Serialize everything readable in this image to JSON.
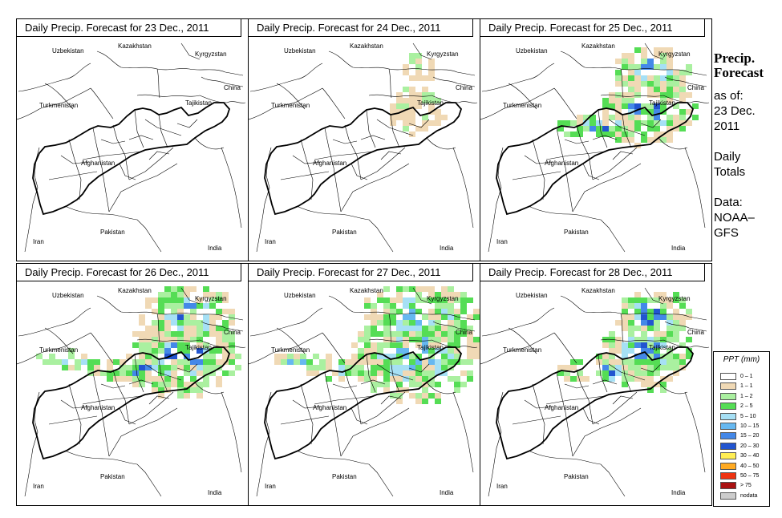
{
  "panels": [
    {
      "title": "Daily Precip. Forecast for  23 Dec., 2011",
      "intensity": 0
    },
    {
      "title": "Daily Precip. Forecast for  24 Dec., 2011",
      "intensity": 1
    },
    {
      "title": "Daily Precip. Forecast for  25 Dec., 2011",
      "intensity": 3
    },
    {
      "title": "Daily Precip. Forecast for  26 Dec., 2011",
      "intensity": 4
    },
    {
      "title": "Daily Precip. Forecast for  27 Dec., 2011",
      "intensity": 5
    },
    {
      "title": "Daily Precip. Forecast for  28 Dec., 2011",
      "intensity": 3
    }
  ],
  "map_labels": {
    "uzbekistan": "Uzbekistan",
    "kazakhstan": "Kazakhstan",
    "kyrgyzstan": "Kyrgyzstan",
    "china": "China",
    "turkmenistan": "Turkmenistan",
    "tajikistan": "Tajikistan",
    "afghanistan": "Afghanistan",
    "pakistan": "Pakistan",
    "iran": "Iran",
    "india": "India"
  },
  "side": {
    "title_line1": "Precip.",
    "title_line2": "Forecast",
    "as_of": "as of:",
    "date_line1": "23 Dec.",
    "date_line2": "2011",
    "totals_line1": "Daily",
    "totals_line2": "Totals",
    "data_line1": "Data:",
    "data_line2": "NOAA–",
    "data_line3": "GFS"
  },
  "legend": {
    "title": "PPT (mm)",
    "items": [
      {
        "label": "0 – 1",
        "color": "#ffffff"
      },
      {
        "label": "1 – 1",
        "color": "#f0d9b5"
      },
      {
        "label": "1 – 2",
        "color": "#aaf0a0"
      },
      {
        "label": "2 – 5",
        "color": "#55dd55"
      },
      {
        "label": "5 – 10",
        "color": "#a6e0f5"
      },
      {
        "label": "10 – 15",
        "color": "#66b8f0"
      },
      {
        "label": "15 – 20",
        "color": "#4488e8"
      },
      {
        "label": "20 – 30",
        "color": "#2255d0"
      },
      {
        "label": "30 – 40",
        "color": "#ffee55"
      },
      {
        "label": "40 – 50",
        "color": "#ffaa22"
      },
      {
        "label": "50 – 75",
        "color": "#ee3311"
      },
      {
        "label": "> 75",
        "color": "#aa1111"
      },
      {
        "label": "nodata",
        "color": "#cccccc"
      }
    ]
  }
}
